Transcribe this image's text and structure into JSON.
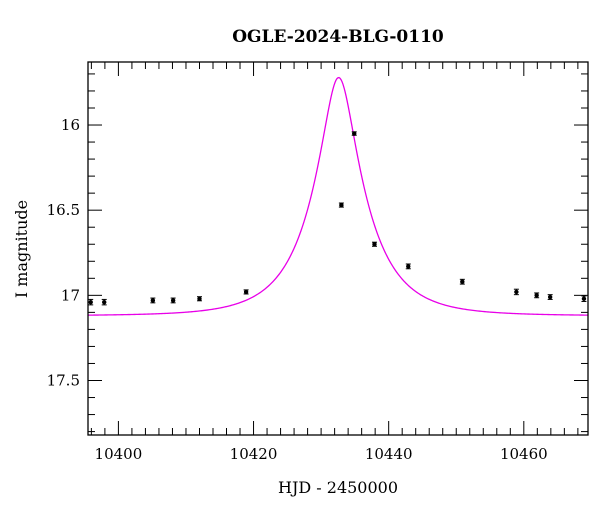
{
  "chart_data": {
    "type": "scatter",
    "title": "OGLE-2024-BLG-0110",
    "xlabel": "HJD - 2450000",
    "ylabel": "I magnitude",
    "xlim": [
      10395.5,
      10469.5
    ],
    "ylim": [
      17.82,
      15.63
    ],
    "y_inverted": true,
    "grid": false,
    "x_ticks": [
      10400,
      10420,
      10440,
      10460
    ],
    "x_tick_labels": [
      "10400",
      "10420",
      "10440",
      "10460"
    ],
    "y_ticks": [
      16,
      16.5,
      17,
      17.5
    ],
    "y_tick_labels": [
      "16",
      "16.5",
      "17",
      "17.5"
    ],
    "x_minor_step": 2,
    "y_minor_step": 0.1,
    "colors": {
      "points": "#000000",
      "model": "#e800e8"
    },
    "points": [
      {
        "x": 10395.9,
        "y": 17.04,
        "err": 0.016
      },
      {
        "x": 10397.9,
        "y": 17.04,
        "err": 0.016
      },
      {
        "x": 10405.1,
        "y": 17.03,
        "err": 0.014
      },
      {
        "x": 10408.1,
        "y": 17.03,
        "err": 0.014
      },
      {
        "x": 10412.0,
        "y": 17.02,
        "err": 0.012
      },
      {
        "x": 10418.9,
        "y": 16.98,
        "err": 0.012
      },
      {
        "x": 10433.0,
        "y": 16.47,
        "err": 0.012
      },
      {
        "x": 10434.9,
        "y": 16.05,
        "err": 0.01
      },
      {
        "x": 10437.9,
        "y": 16.7,
        "err": 0.012
      },
      {
        "x": 10442.9,
        "y": 16.83,
        "err": 0.014
      },
      {
        "x": 10450.9,
        "y": 16.92,
        "err": 0.014
      },
      {
        "x": 10458.9,
        "y": 16.98,
        "err": 0.016
      },
      {
        "x": 10461.9,
        "y": 17.0,
        "err": 0.014
      },
      {
        "x": 10463.9,
        "y": 17.01,
        "err": 0.014
      },
      {
        "x": 10468.9,
        "y": 17.02,
        "err": 0.016
      }
    ],
    "model": {
      "name": "",
      "t0": 10432.6,
      "u0": 0.284,
      "tE": 7.9,
      "base": 17.12
    }
  }
}
